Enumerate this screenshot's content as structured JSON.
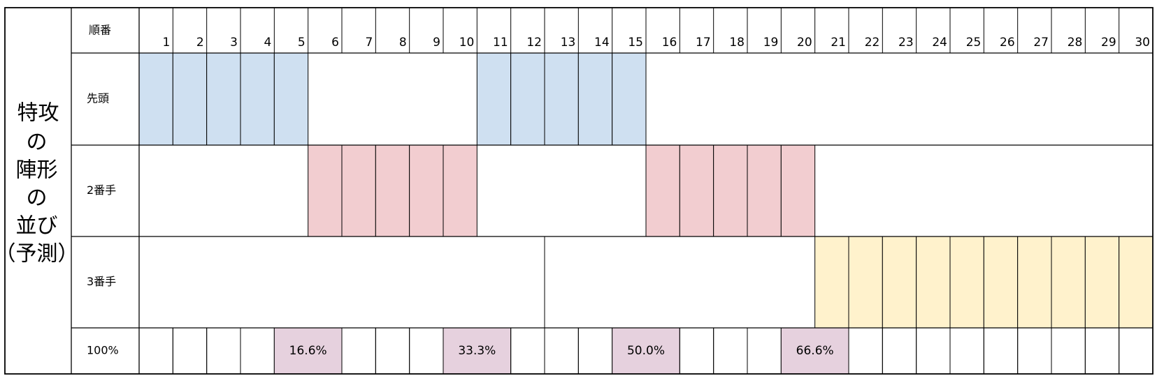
{
  "title": {
    "highlight": "特攻",
    "lines": [
      "の",
      "陣形",
      "の",
      "並び",
      "（予測）"
    ],
    "highlight_color": "#e0201b"
  },
  "header": {
    "label": "順番",
    "columns": [
      1,
      2,
      3,
      4,
      5,
      6,
      7,
      8,
      9,
      10,
      11,
      12,
      13,
      14,
      15,
      16,
      17,
      18,
      19,
      20,
      21,
      22,
      23,
      24,
      25,
      26,
      27,
      28,
      29,
      30
    ]
  },
  "rows": [
    {
      "label": "先頭",
      "cells": [
        "#cfe0f1",
        "#cfe0f1",
        "#cfe0f1",
        "#cfe0f1",
        "#cfe0f1",
        null,
        null,
        null,
        null,
        null,
        "#cfe0f1",
        "#cfe0f1",
        "#cfe0f1",
        "#cfe0f1",
        "#cfe0f1",
        null,
        null,
        null,
        null,
        null,
        null,
        null,
        null,
        null,
        null,
        null,
        null,
        null,
        null,
        null
      ]
    },
    {
      "label": "2番手",
      "cells": [
        null,
        null,
        null,
        null,
        null,
        "#f2cdd0",
        "#f2cdd0",
        "#f2cdd0",
        "#f2cdd0",
        "#f2cdd0",
        null,
        null,
        null,
        null,
        null,
        "#f2cdd0",
        "#f2cdd0",
        "#f2cdd0",
        "#f2cdd0",
        "#f2cdd0",
        null,
        null,
        null,
        null,
        null,
        null,
        null,
        null,
        null,
        null
      ]
    },
    {
      "label": "3番手",
      "cells": [
        null,
        null,
        null,
        null,
        null,
        null,
        null,
        null,
        null,
        null,
        null,
        null,
        null,
        null,
        null,
        null,
        null,
        null,
        null,
        null,
        "#fff2cc",
        "#fff2cc",
        "#fff2cc",
        "#fff2cc",
        "#fff2cc",
        "#fff2cc",
        "#fff2cc",
        "#fff2cc",
        "#fff2cc",
        "#fff2cc"
      ]
    }
  ],
  "progress": {
    "label": "100%",
    "fill": "#e6d1de",
    "cells": [
      null,
      null,
      null,
      null,
      "16.6%",
      null,
      null,
      null,
      null,
      "33.3%",
      null,
      null,
      null,
      null,
      "50.0%",
      null,
      null,
      null,
      null,
      "66.6%",
      null,
      null,
      null,
      null,
      null,
      null,
      null,
      null,
      null,
      null
    ]
  }
}
